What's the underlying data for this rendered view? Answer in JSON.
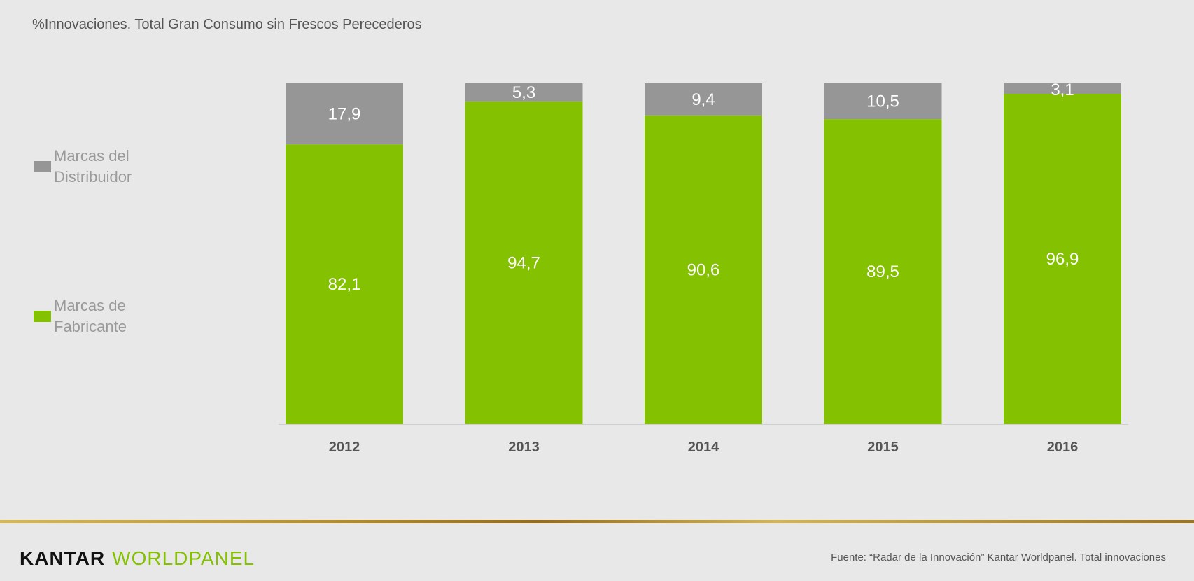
{
  "chart_data": {
    "type": "bar",
    "stacked": true,
    "title": "%Innovaciones. Total Gran Consumo sin Frescos Perecederos",
    "categories": [
      "2012",
      "2013",
      "2014",
      "2015",
      "2016"
    ],
    "series": [
      {
        "name": "Marcas de Fabricante",
        "color": "#84c100",
        "values": [
          82.1,
          94.7,
          90.6,
          89.5,
          96.9
        ],
        "labels": [
          "82,1",
          "94,7",
          "90,6",
          "89,5",
          "96,9"
        ]
      },
      {
        "name": "Marcas del Distribuidor",
        "color": "#969696",
        "values": [
          17.9,
          5.3,
          9.4,
          10.5,
          3.1
        ],
        "labels": [
          "17,9",
          "5,3",
          "9,4",
          "10,5",
          "3,1"
        ]
      }
    ],
    "ylim": [
      0,
      100
    ],
    "legend_placement": "left",
    "legend": {
      "distribuidor": [
        "Marcas del",
        "Distribuidor"
      ],
      "fabricante": [
        "Marcas de",
        "Fabricante"
      ]
    }
  },
  "footer": {
    "logo_left": "KANTAR",
    "logo_right": "WORLDPANEL",
    "source": "Fuente: “Radar de la Innovación” Kantar Worldpanel. Total innovaciones"
  }
}
